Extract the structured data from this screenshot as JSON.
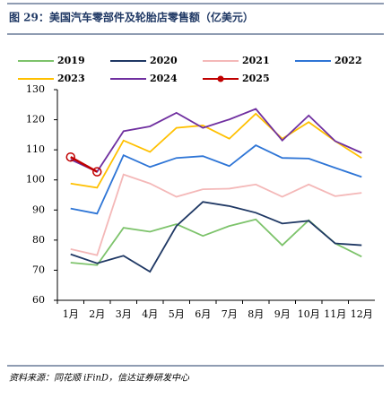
{
  "chart_data": {
    "type": "line",
    "title": "图 29：美国汽车零部件及轮胎店零售额（亿美元）",
    "source": "资料来源：同花顺 iFinD，信达证券研发中心",
    "categories": [
      "1月",
      "2月",
      "3月",
      "4月",
      "5月",
      "6月",
      "7月",
      "8月",
      "9月",
      "10月",
      "11月",
      "12月"
    ],
    "ylim": [
      60,
      130
    ],
    "yticks": [
      60,
      70,
      80,
      90,
      100,
      110,
      120,
      130
    ],
    "series": [
      {
        "name": "2019",
        "color": "#7dc36b",
        "values": [
          72.5,
          71.7,
          84.1,
          82.8,
          85.3,
          81.4,
          84.7,
          86.9,
          78.3,
          86.6,
          78.9,
          74.5
        ]
      },
      {
        "name": "2020",
        "color": "#1f3864",
        "values": [
          75.3,
          72.3,
          74.8,
          69.5,
          84.7,
          92.7,
          91.3,
          89.1,
          85.5,
          86.4,
          78.9,
          78.3
        ]
      },
      {
        "name": "2021",
        "color": "#f4b8b8",
        "values": [
          77.0,
          75.0,
          101.8,
          98.8,
          94.4,
          96.9,
          97.1,
          98.5,
          94.4,
          98.5,
          94.6,
          95.7
        ]
      },
      {
        "name": "2022",
        "color": "#2e75d6",
        "values": [
          90.5,
          88.8,
          108.2,
          104.3,
          107.3,
          107.9,
          104.6,
          111.5,
          107.3,
          107.1,
          104.0,
          101.0
        ]
      },
      {
        "name": "2023",
        "color": "#ffc000",
        "values": [
          98.8,
          97.4,
          113.1,
          109.3,
          117.3,
          118.1,
          113.7,
          122.0,
          113.7,
          119.2,
          112.9,
          107.3
        ]
      },
      {
        "name": "2024",
        "color": "#7030a0",
        "values": [
          106.8,
          102.7,
          116.2,
          117.8,
          122.3,
          117.3,
          120.1,
          123.6,
          113.1,
          121.4,
          112.9,
          109.0
        ]
      },
      {
        "name": "2025",
        "color": "#c00000",
        "markers": true,
        "values": [
          107.6,
          102.7,
          null,
          null,
          null,
          null,
          null,
          null,
          null,
          null,
          null,
          null
        ]
      }
    ]
  }
}
